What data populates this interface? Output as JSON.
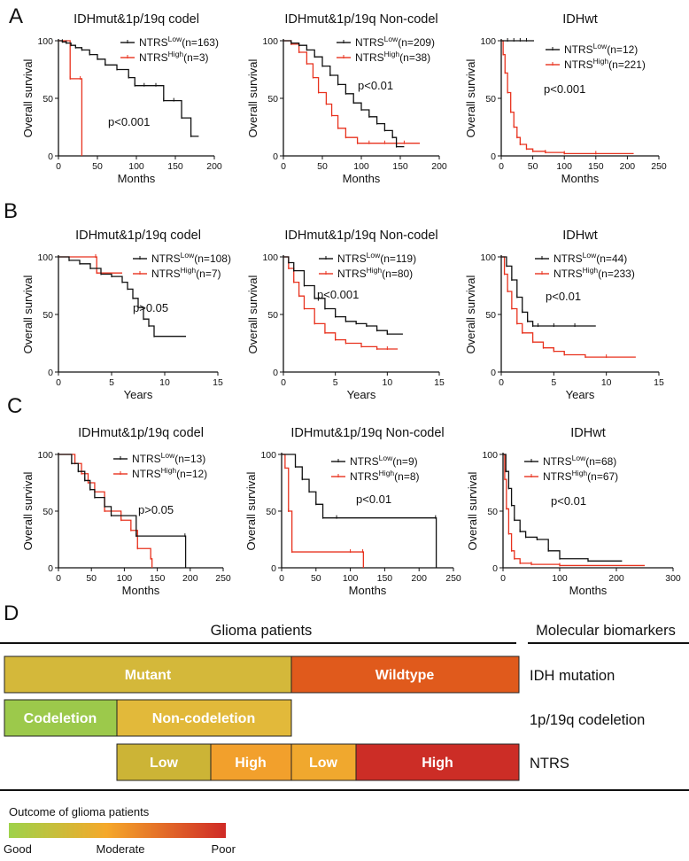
{
  "figure": {
    "panel_labels": [
      "A",
      "B",
      "C",
      "D"
    ],
    "legend_low_prefix": "NTRS",
    "legend_low_sup": "Low",
    "legend_high_prefix": "NTRS",
    "legend_high_sup": "High",
    "colors": {
      "low": "#111111",
      "high": "#e8321e"
    }
  },
  "chart_data": [
    {
      "id": "A1",
      "panel": "A",
      "type": "line",
      "title": "IDHmut&1p/19q codel",
      "xlabel": "Months",
      "ylabel": "Overall survival",
      "xlim": [
        0,
        200
      ],
      "ylim": [
        0,
        100
      ],
      "xticks": [
        0,
        50,
        100,
        150,
        200
      ],
      "yticks": [
        0,
        50,
        100
      ],
      "pvalue": "p<0.001",
      "series": [
        {
          "name": "NTRS Low",
          "n_label": "(n=163)",
          "color": "#111111",
          "x": [
            0,
            5,
            10,
            16,
            22,
            30,
            40,
            50,
            60,
            75,
            90,
            98,
            110,
            125,
            135,
            148,
            158,
            170,
            180
          ],
          "y": [
            100,
            99,
            98,
            96,
            94,
            92,
            88,
            84,
            79,
            75,
            68,
            61,
            61,
            61,
            48,
            48,
            33,
            17,
            17
          ]
        },
        {
          "name": "NTRS High",
          "n_label": "(n=3)",
          "color": "#e8321e",
          "x": [
            0,
            15,
            28,
            30
          ],
          "y": [
            100,
            67,
            67,
            0
          ]
        }
      ]
    },
    {
      "id": "A2",
      "panel": "A",
      "type": "line",
      "title": "IDHmut&1p/19q Non-codel",
      "xlabel": "Months",
      "ylabel": "Overall survival",
      "xlim": [
        0,
        200
      ],
      "ylim": [
        0,
        100
      ],
      "xticks": [
        0,
        50,
        100,
        150,
        200
      ],
      "yticks": [
        0,
        50,
        100
      ],
      "pvalue": "p<0.01",
      "series": [
        {
          "name": "NTRS Low",
          "n_label": "(n=209)",
          "color": "#111111",
          "x": [
            0,
            10,
            20,
            30,
            40,
            50,
            60,
            70,
            80,
            90,
            100,
            110,
            120,
            130,
            140,
            145,
            155
          ],
          "y": [
            100,
            98,
            96,
            92,
            86,
            78,
            70,
            62,
            54,
            46,
            40,
            34,
            28,
            22,
            16,
            8,
            8
          ]
        },
        {
          "name": "NTRS High",
          "n_label": "(n=38)",
          "color": "#e8321e",
          "x": [
            0,
            10,
            20,
            30,
            38,
            45,
            55,
            62,
            70,
            80,
            95,
            110,
            130,
            155,
            175
          ],
          "y": [
            100,
            97,
            90,
            80,
            68,
            55,
            45,
            35,
            24,
            16,
            11,
            11,
            11,
            11,
            11
          ]
        }
      ]
    },
    {
      "id": "A3",
      "panel": "A",
      "type": "line",
      "title": "IDHwt",
      "xlabel": "Months",
      "ylabel": "Overall survival",
      "xlim": [
        0,
        250
      ],
      "ylim": [
        0,
        100
      ],
      "xticks": [
        0,
        50,
        100,
        150,
        200,
        250
      ],
      "yticks": [
        0,
        50,
        100
      ],
      "pvalue": "p<0.001",
      "series": [
        {
          "name": "NTRS Low",
          "n_label": "(n=12)",
          "color": "#111111",
          "x": [
            0,
            10,
            20,
            30,
            40,
            52
          ],
          "y": [
            100,
            100,
            100,
            100,
            100,
            100
          ]
        },
        {
          "name": "NTRS High",
          "n_label": "(n=221)",
          "color": "#e8321e",
          "x": [
            0,
            3,
            6,
            10,
            15,
            20,
            25,
            30,
            40,
            50,
            70,
            100,
            150,
            210
          ],
          "y": [
            100,
            88,
            72,
            55,
            38,
            25,
            16,
            10,
            6,
            4,
            3,
            2,
            2,
            2
          ]
        }
      ]
    },
    {
      "id": "B1",
      "panel": "B",
      "type": "line",
      "title": "IDHmut&1p/19q codel",
      "xlabel": "Years",
      "ylabel": "Overall survival",
      "xlim": [
        0,
        15
      ],
      "ylim": [
        0,
        100
      ],
      "xticks": [
        0,
        5,
        10,
        15
      ],
      "yticks": [
        0,
        50,
        100
      ],
      "pvalue": "p>0.05",
      "series": [
        {
          "name": "NTRS Low",
          "n_label": "(n=108)",
          "color": "#111111",
          "x": [
            0,
            1,
            2,
            3,
            4,
            5,
            6,
            6.5,
            7,
            7.5,
            8,
            8.5,
            9,
            12
          ],
          "y": [
            100,
            97,
            94,
            90,
            85,
            83,
            78,
            72,
            64,
            56,
            46,
            40,
            31,
            31
          ]
        },
        {
          "name": "NTRS High",
          "n_label": "(n=7)",
          "color": "#e8321e",
          "x": [
            0,
            3.5,
            3.6,
            6
          ],
          "y": [
            100,
            100,
            86,
            86
          ]
        }
      ]
    },
    {
      "id": "B2",
      "panel": "B",
      "type": "line",
      "title": "IDHmut&1p/19q Non-codel",
      "xlabel": "Years",
      "ylabel": "Overall survival",
      "xlim": [
        0,
        15
      ],
      "ylim": [
        0,
        100
      ],
      "xticks": [
        0,
        5,
        10,
        15
      ],
      "yticks": [
        0,
        50,
        100
      ],
      "pvalue": "p<0.001",
      "series": [
        {
          "name": "NTRS Low",
          "n_label": "(n=119)",
          "color": "#111111",
          "x": [
            0,
            0.5,
            1,
            2,
            3,
            4,
            5,
            6,
            7,
            8,
            9,
            10,
            11.5
          ],
          "y": [
            100,
            95,
            88,
            75,
            64,
            55,
            48,
            44,
            42,
            40,
            36,
            33,
            33
          ]
        },
        {
          "name": "NTRS High",
          "n_label": "(n=80)",
          "color": "#e8321e",
          "x": [
            0,
            0.5,
            1,
            1.5,
            2,
            3,
            4,
            5,
            6,
            7.5,
            9,
            10,
            11
          ],
          "y": [
            100,
            90,
            78,
            66,
            55,
            42,
            34,
            28,
            25,
            22,
            20,
            20,
            20
          ]
        }
      ]
    },
    {
      "id": "B3",
      "panel": "B",
      "type": "line",
      "title": "IDHwt",
      "xlabel": "Years",
      "ylabel": "Overall survival",
      "xlim": [
        0,
        15
      ],
      "ylim": [
        0,
        100
      ],
      "xticks": [
        0,
        5,
        10,
        15
      ],
      "yticks": [
        0,
        50,
        100
      ],
      "pvalue": "p<0.01",
      "series": [
        {
          "name": "NTRS Low",
          "n_label": "(n=44)",
          "color": "#111111",
          "x": [
            0,
            0.5,
            1,
            1.5,
            2,
            2.5,
            3,
            3.5,
            5,
            7,
            9
          ],
          "y": [
            100,
            92,
            80,
            65,
            52,
            44,
            40,
            40,
            40,
            40,
            40
          ]
        },
        {
          "name": "NTRS High",
          "n_label": "(n=233)",
          "color": "#e8321e",
          "x": [
            0,
            0.3,
            0.6,
            1,
            1.5,
            2,
            3,
            4,
            5,
            6,
            8,
            10,
            12.8
          ],
          "y": [
            100,
            85,
            70,
            55,
            42,
            34,
            26,
            21,
            18,
            15,
            13,
            13,
            13
          ]
        }
      ]
    },
    {
      "id": "C1",
      "panel": "C",
      "type": "line",
      "title": "IDHmut&1p/19q codel",
      "xlabel": "Months",
      "ylabel": "Overall survival",
      "xlim": [
        0,
        250
      ],
      "ylim": [
        0,
        100
      ],
      "xticks": [
        0,
        50,
        100,
        150,
        200,
        250
      ],
      "yticks": [
        0,
        50,
        100
      ],
      "pvalue": "p>0.05",
      "series": [
        {
          "name": "NTRS Low",
          "n_label": "(n=13)",
          "color": "#111111",
          "x": [
            0,
            20,
            30,
            40,
            48,
            55,
            70,
            80,
            118,
            192,
            193
          ],
          "y": [
            100,
            92,
            85,
            77,
            69,
            62,
            54,
            46,
            28,
            28,
            0
          ]
        },
        {
          "name": "NTRS High",
          "n_label": "(n=12)",
          "color": "#e8321e",
          "x": [
            0,
            25,
            35,
            45,
            55,
            70,
            95,
            110,
            120,
            140,
            142
          ],
          "y": [
            100,
            92,
            83,
            75,
            67,
            50,
            42,
            33,
            17,
            8,
            0
          ]
        }
      ]
    },
    {
      "id": "C2",
      "panel": "C",
      "type": "line",
      "title": "IDHmut&1p/19q Non-codel",
      "xlabel": "Months",
      "ylabel": "Overall survival",
      "xlim": [
        0,
        250
      ],
      "ylim": [
        0,
        100
      ],
      "xticks": [
        0,
        50,
        100,
        150,
        200,
        250
      ],
      "yticks": [
        0,
        50,
        100
      ],
      "pvalue": "p<0.01",
      "series": [
        {
          "name": "NTRS Low",
          "n_label": "(n=9)",
          "color": "#111111",
          "x": [
            0,
            20,
            30,
            40,
            50,
            60,
            80,
            224,
            225
          ],
          "y": [
            100,
            89,
            78,
            67,
            56,
            44,
            44,
            44,
            0
          ]
        },
        {
          "name": "NTRS High",
          "n_label": "(n=8)",
          "color": "#e8321e",
          "x": [
            0,
            5,
            10,
            15,
            100,
            118,
            119
          ],
          "y": [
            100,
            88,
            50,
            14,
            14,
            14,
            0
          ]
        }
      ]
    },
    {
      "id": "C3",
      "panel": "C",
      "type": "line",
      "title": "IDHwt",
      "xlabel": "Months",
      "ylabel": "Overall survival",
      "xlim": [
        0,
        300
      ],
      "ylim": [
        0,
        100
      ],
      "xticks": [
        0,
        100,
        200,
        300
      ],
      "yticks": [
        0,
        50,
        100
      ],
      "pvalue": "p<0.01",
      "series": [
        {
          "name": "NTRS Low",
          "n_label": "(n=68)",
          "color": "#111111",
          "x": [
            0,
            5,
            10,
            15,
            20,
            30,
            40,
            60,
            80,
            100,
            150,
            210
          ],
          "y": [
            100,
            85,
            70,
            55,
            42,
            32,
            27,
            25,
            15,
            8,
            6,
            6
          ]
        },
        {
          "name": "NTRS High",
          "n_label": "(n=67)",
          "color": "#e8321e",
          "x": [
            0,
            3,
            6,
            10,
            15,
            20,
            30,
            50,
            100,
            250
          ],
          "y": [
            100,
            78,
            52,
            30,
            15,
            8,
            4,
            3,
            2,
            2
          ]
        }
      ]
    }
  ],
  "diagram": {
    "left_heading": "Glioma patients",
    "right_heading": "Molecular biomarkers",
    "rows": [
      {
        "label": "IDH mutation",
        "blocks": [
          {
            "text": "Mutant",
            "color": "#d4b83a"
          },
          {
            "text": "Wildtype",
            "color": "#e05a1c"
          }
        ]
      },
      {
        "label": "1p/19q codeletion",
        "blocks": [
          {
            "text": "Codeletion",
            "color": "#9cc94b"
          },
          {
            "text": "Non-codeletion",
            "color": "#e2b93a"
          }
        ]
      },
      {
        "label": "NTRS",
        "blocks": [
          {
            "text": "Low",
            "color": "#ccb436"
          },
          {
            "text": "High",
            "color": "#f2a02c"
          },
          {
            "text": "Low",
            "color": "#f0a82e"
          },
          {
            "text": "High",
            "color": "#cc2d26"
          }
        ]
      }
    ],
    "outcome": {
      "title": "Outcome of glioma patients",
      "labels": [
        "Good",
        "Moderate",
        "Poor"
      ],
      "colors": [
        "#9ed24a",
        "#f5a82a",
        "#cf2a26"
      ]
    }
  }
}
